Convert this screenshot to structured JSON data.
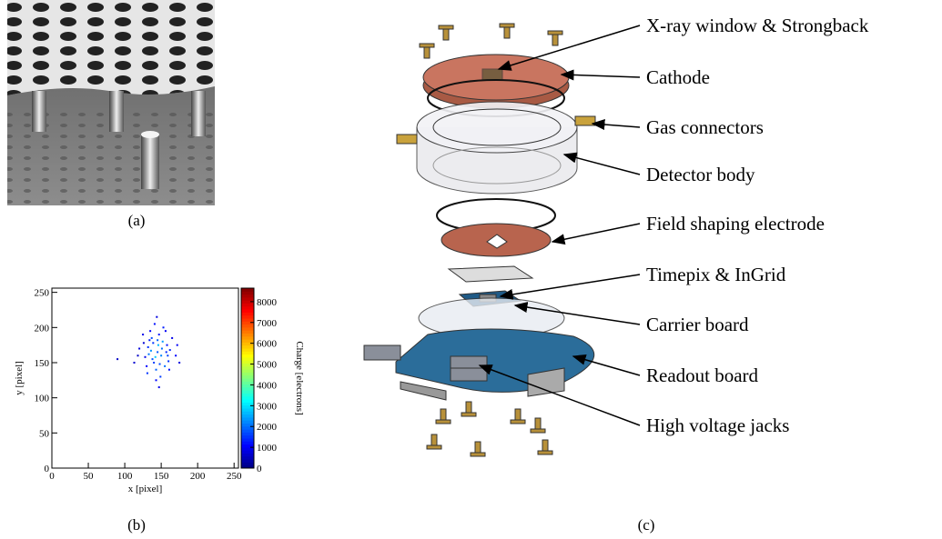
{
  "captions": [
    "(a)",
    "(b)",
    "(c)"
  ],
  "diagram": {
    "labels": [
      "X-ray window & Strongback",
      "Cathode",
      "Gas connectors",
      "Detector body",
      "Field shaping electrode",
      "Timepix & InGrid",
      "Carrier board",
      "Readout board",
      "High voltage jacks"
    ]
  },
  "chart_data": {
    "type": "scatter",
    "xlabel": "x [pixel]",
    "ylabel": "y [pixel]",
    "xlim": [
      0,
      256
    ],
    "ylim": [
      0,
      256
    ],
    "xticks": [
      0,
      50,
      100,
      150,
      200,
      250
    ],
    "yticks": [
      0,
      50,
      100,
      150,
      200,
      250
    ],
    "x": [
      145,
      132,
      150,
      158,
      140,
      128,
      162,
      137,
      147,
      155,
      120,
      170,
      143,
      135,
      152,
      160,
      126,
      141,
      149,
      133,
      165,
      138,
      146,
      157,
      130,
      144,
      153,
      118,
      172,
      136,
      148,
      139,
      161,
      125,
      151,
      142,
      134,
      156,
      147,
      113,
      175,
      143,
      131,
      159,
      90,
      145
    ],
    "y": [
      165,
      172,
      160,
      175,
      150,
      158,
      168,
      185,
      190,
      145,
      170,
      160,
      140,
      195,
      180,
      152,
      178,
      205,
      130,
      162,
      185,
      155,
      175,
      165,
      145,
      215,
      200,
      160,
      175,
      167,
      148,
      178,
      140,
      190,
      170,
      158,
      182,
      195,
      115,
      150,
      150,
      125,
      135,
      160,
      155,
      182
    ],
    "charge": [
      1800,
      1500,
      2200,
      1200,
      1600,
      900,
      1400,
      1700,
      1300,
      2000,
      800,
      1100,
      1900,
      1000,
      2400,
      1500,
      700,
      1200,
      1600,
      2100,
      900,
      1800,
      2600,
      1400,
      1100,
      800,
      1300,
      600,
      1000,
      2300,
      1700,
      1500,
      1200,
      900,
      2000,
      2800,
      1300,
      1000,
      900,
      700,
      800,
      1100,
      1500,
      1600,
      600,
      1900
    ],
    "colorbar": {
      "label": "Charge [electrons]",
      "lim": [
        0,
        8650
      ],
      "ticks": [
        0,
        1000,
        2000,
        3000,
        4000,
        5000,
        6000,
        7000,
        8000
      ],
      "colormap": "jet"
    }
  }
}
